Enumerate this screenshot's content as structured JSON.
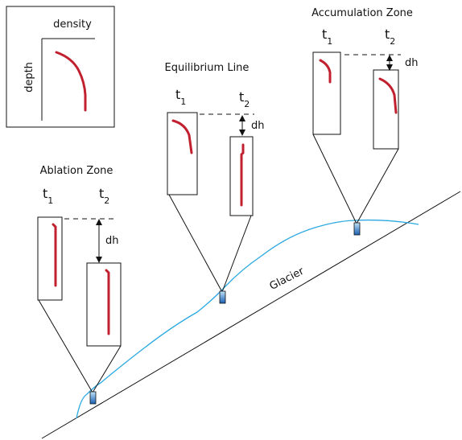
{
  "legend": {
    "x_label": "density",
    "y_label": "depth"
  },
  "zones": [
    {
      "title": "Accumulation Zone",
      "t1": {
        "base": "t",
        "sub": "1"
      },
      "t2": {
        "base": "t",
        "sub": "2"
      },
      "dh": "dh"
    },
    {
      "title": "Equilibrium Line",
      "t1": {
        "base": "t",
        "sub": "1"
      },
      "t2": {
        "base": "t",
        "sub": "2"
      },
      "dh": "dh"
    },
    {
      "title": "Ablation Zone",
      "t1": {
        "base": "t",
        "sub": "1"
      },
      "t2": {
        "base": "t",
        "sub": "2"
      },
      "dh": "dh"
    }
  ],
  "glacier_label": "Glacier"
}
